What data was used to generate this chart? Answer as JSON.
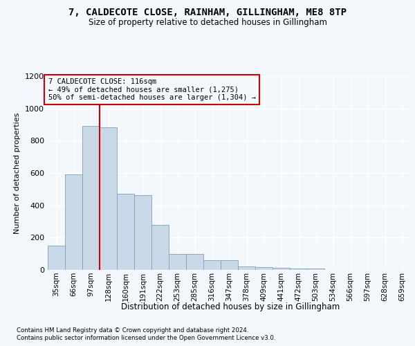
{
  "title_line1": "7, CALDECOTE CLOSE, RAINHAM, GILLINGHAM, ME8 8TP",
  "title_line2": "Size of property relative to detached houses in Gillingham",
  "xlabel": "Distribution of detached houses by size in Gillingham",
  "ylabel": "Number of detached properties",
  "bar_labels": [
    "35sqm",
    "66sqm",
    "97sqm",
    "128sqm",
    "160sqm",
    "191sqm",
    "222sqm",
    "253sqm",
    "285sqm",
    "316sqm",
    "347sqm",
    "378sqm",
    "409sqm",
    "441sqm",
    "472sqm",
    "503sqm",
    "534sqm",
    "566sqm",
    "597sqm",
    "628sqm",
    "659sqm"
  ],
  "bar_values": [
    150,
    590,
    890,
    885,
    470,
    465,
    280,
    100,
    100,
    60,
    58,
    22,
    18,
    12,
    10,
    8,
    0,
    0,
    0,
    0,
    0
  ],
  "bar_color": "#c9d9e8",
  "bar_edge_color": "#7ca0be",
  "vline_color": "#cc0000",
  "vline_x": 2.5,
  "annotation_text": "7 CALDECOTE CLOSE: 116sqm\n← 49% of detached houses are smaller (1,275)\n50% of semi-detached houses are larger (1,304) →",
  "annotation_box_edgecolor": "#cc0000",
  "ylim_max": 1200,
  "yticks": [
    0,
    200,
    400,
    600,
    800,
    1000,
    1200
  ],
  "background_color": "#f4f7fb",
  "grid_color": "#ffffff",
  "footer_line1": "Contains HM Land Registry data © Crown copyright and database right 2024.",
  "footer_line2": "Contains public sector information licensed under the Open Government Licence v3.0."
}
